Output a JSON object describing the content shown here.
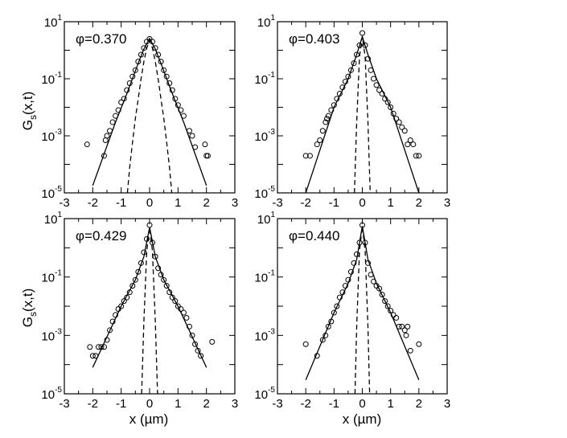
{
  "figure": {
    "ylabel_main": "G",
    "ylabel_sub": "s",
    "ylabel_args": "(x,t)",
    "xlabel": "x (µm)"
  },
  "chart_data": [
    {
      "type": "scatter",
      "panel_label": "φ=0.370",
      "xlim": [
        -3,
        3
      ],
      "ylim": [
        1e-05,
        10
      ],
      "yscale": "log",
      "xticks": [
        "-3",
        "-2",
        "-1",
        "0",
        "1",
        "2",
        "3"
      ],
      "yticks": [
        {
          "base": "10",
          "exp": "1"
        },
        {
          "base": "10",
          "exp": "-1"
        },
        {
          "base": "10",
          "exp": "-3"
        },
        {
          "base": "10",
          "exp": "-5"
        }
      ],
      "series": [
        {
          "kind": "markers",
          "marker": "open-circle",
          "x": [
            -2.2,
            -1.6,
            -1.55,
            -1.5,
            -1.4,
            -1.3,
            -1.2,
            -1.1,
            -1.0,
            -0.9,
            -0.8,
            -0.7,
            -0.6,
            -0.5,
            -0.4,
            -0.3,
            -0.2,
            -0.1,
            0.0,
            0.1,
            0.2,
            0.3,
            0.4,
            0.5,
            0.6,
            0.7,
            0.8,
            0.9,
            1.0,
            1.1,
            1.2,
            1.4,
            1.5,
            1.6,
            1.95,
            2.0,
            2.05
          ],
          "y": [
            0.0005,
            0.0002,
            0.0007,
            0.001,
            0.0015,
            0.003,
            0.005,
            0.008,
            0.015,
            0.02,
            0.04,
            0.07,
            0.12,
            0.2,
            0.4,
            0.7,
            1.2,
            2.0,
            2.5,
            2.0,
            1.2,
            0.7,
            0.4,
            0.2,
            0.12,
            0.07,
            0.04,
            0.02,
            0.012,
            0.008,
            0.005,
            0.0015,
            0.001,
            0.0004,
            0.0005,
            0.0002,
            0.0002
          ]
        },
        {
          "kind": "fit-solid",
          "x": [
            -2.0,
            -1.2,
            -0.8,
            -0.4,
            -0.2,
            0.0,
            0.2,
            0.4,
            0.8,
            1.2,
            2.0
          ],
          "y": [
            1.8e-05,
            0.003,
            0.03,
            0.35,
            1.1,
            2.6,
            1.1,
            0.35,
            0.03,
            0.003,
            1.8e-05
          ]
        },
        {
          "kind": "fit-dashed",
          "x": [
            -0.78,
            -0.7,
            -0.6,
            -0.5,
            -0.4,
            -0.3,
            -0.2,
            -0.1,
            0.0,
            0.1,
            0.2,
            0.3,
            0.4,
            0.5,
            0.6,
            0.7,
            0.78
          ],
          "y": [
            1e-05,
            8e-05,
            0.0006,
            0.004,
            0.02,
            0.1,
            0.4,
            1.2,
            2.2,
            1.2,
            0.4,
            0.1,
            0.02,
            0.004,
            0.0006,
            8e-05,
            1e-05
          ]
        }
      ]
    },
    {
      "type": "scatter",
      "panel_label": "φ=0.403",
      "xlim": [
        -3,
        3
      ],
      "ylim": [
        1e-05,
        10
      ],
      "yscale": "log",
      "xticks": [
        "-3",
        "-2",
        "-1",
        "0",
        "1",
        "2",
        "3"
      ],
      "yticks": [
        {
          "base": "10",
          "exp": "1"
        },
        {
          "base": "10",
          "exp": "-1"
        },
        {
          "base": "10",
          "exp": "-3"
        },
        {
          "base": "10",
          "exp": "-5"
        }
      ],
      "series": [
        {
          "kind": "markers",
          "marker": "open-circle",
          "x": [
            -2.0,
            -1.85,
            -1.6,
            -1.5,
            -1.4,
            -1.3,
            -1.25,
            -1.2,
            -1.1,
            -1.0,
            -0.9,
            -0.8,
            -0.7,
            -0.6,
            -0.5,
            -0.4,
            -0.3,
            -0.2,
            -0.1,
            0.0,
            0.1,
            0.2,
            0.3,
            0.4,
            0.5,
            0.6,
            0.7,
            0.8,
            0.9,
            1.0,
            1.1,
            1.2,
            1.3,
            1.4,
            1.5,
            1.6,
            1.7,
            1.8,
            1.9,
            2.0
          ],
          "y": [
            0.0002,
            0.0002,
            0.0005,
            0.0007,
            0.0015,
            0.003,
            0.004,
            0.005,
            0.008,
            0.012,
            0.02,
            0.03,
            0.05,
            0.08,
            0.12,
            0.2,
            0.35,
            0.7,
            1.5,
            4.0,
            1.5,
            0.5,
            0.2,
            0.1,
            0.06,
            0.04,
            0.03,
            0.02,
            0.015,
            0.01,
            0.006,
            0.004,
            0.003,
            0.002,
            0.0015,
            0.0005,
            0.0007,
            0.0005,
            0.0002,
            0.0002
          ]
        },
        {
          "kind": "fit-solid",
          "x": [
            -2.0,
            -1.0,
            -0.5,
            -0.2,
            0.0,
            0.2,
            0.5,
            1.0,
            2.0
          ],
          "y": [
            1e-05,
            0.01,
            0.1,
            0.7,
            3.0,
            0.7,
            0.1,
            0.01,
            1e-05
          ]
        },
        {
          "kind": "fit-dashed",
          "x": [
            -0.28,
            -0.2,
            -0.1,
            0.0,
            0.1,
            0.2,
            0.28
          ],
          "y": [
            1e-05,
            0.003,
            0.6,
            3.0,
            0.6,
            0.003,
            1e-05
          ]
        }
      ]
    },
    {
      "type": "scatter",
      "panel_label": "φ=0.429",
      "xlim": [
        -3,
        3
      ],
      "ylim": [
        1e-05,
        10
      ],
      "yscale": "log",
      "xticks": [
        "-3",
        "-2",
        "-1",
        "0",
        "1",
        "2",
        "3"
      ],
      "yticks": [
        {
          "base": "10",
          "exp": "1"
        },
        {
          "base": "10",
          "exp": "-1"
        },
        {
          "base": "10",
          "exp": "-3"
        },
        {
          "base": "10",
          "exp": "-5"
        }
      ],
      "series": [
        {
          "kind": "markers",
          "marker": "open-circle",
          "x": [
            -2.1,
            -2.0,
            -1.9,
            -1.8,
            -1.7,
            -1.6,
            -1.5,
            -1.4,
            -1.3,
            -1.2,
            -1.1,
            -1.0,
            -0.9,
            -0.8,
            -0.7,
            -0.6,
            -0.5,
            -0.4,
            -0.3,
            -0.2,
            -0.1,
            0.0,
            0.1,
            0.2,
            0.3,
            0.4,
            0.5,
            0.6,
            0.7,
            0.8,
            0.9,
            1.0,
            1.1,
            1.2,
            1.3,
            1.4,
            1.5,
            1.6,
            1.7,
            1.8,
            2.2
          ],
          "y": [
            0.0004,
            0.0002,
            0.0002,
            0.0004,
            0.0004,
            0.0004,
            0.0007,
            0.0015,
            0.003,
            0.005,
            0.008,
            0.01,
            0.015,
            0.02,
            0.03,
            0.05,
            0.08,
            0.15,
            0.3,
            0.7,
            2.0,
            6.0,
            1.5,
            0.5,
            0.2,
            0.12,
            0.08,
            0.05,
            0.03,
            0.02,
            0.015,
            0.01,
            0.008,
            0.006,
            0.004,
            0.002,
            0.001,
            0.0005,
            0.0003,
            0.0002,
            0.0006
          ]
        },
        {
          "kind": "fit-solid",
          "x": [
            -2.0,
            -1.0,
            -0.5,
            -0.2,
            0.0,
            0.2,
            0.5,
            1.0,
            2.0
          ],
          "y": [
            8e-05,
            0.01,
            0.08,
            0.5,
            5.0,
            0.5,
            0.08,
            0.01,
            8e-05
          ]
        },
        {
          "kind": "fit-dashed",
          "x": [
            -0.28,
            -0.2,
            -0.1,
            0.0,
            0.1,
            0.2,
            0.28
          ],
          "y": [
            1e-05,
            0.003,
            0.8,
            5.0,
            0.8,
            0.003,
            1e-05
          ]
        }
      ]
    },
    {
      "type": "scatter",
      "panel_label": "φ=0.440",
      "xlim": [
        -3,
        3
      ],
      "ylim": [
        1e-05,
        10
      ],
      "yscale": "log",
      "xticks": [
        "-3",
        "-2",
        "-1",
        "0",
        "1",
        "2",
        "3"
      ],
      "yticks": [
        {
          "base": "10",
          "exp": "1"
        },
        {
          "base": "10",
          "exp": "-1"
        },
        {
          "base": "10",
          "exp": "-3"
        },
        {
          "base": "10",
          "exp": "-5"
        }
      ],
      "series": [
        {
          "kind": "markers",
          "marker": "open-circle",
          "x": [
            -2.0,
            -1.6,
            -1.4,
            -1.3,
            -1.2,
            -1.1,
            -1.0,
            -0.9,
            -0.8,
            -0.7,
            -0.6,
            -0.5,
            -0.4,
            -0.3,
            -0.2,
            -0.1,
            0.0,
            0.1,
            0.2,
            0.3,
            0.4,
            0.5,
            0.6,
            0.7,
            0.8,
            0.9,
            1.0,
            1.1,
            1.2,
            1.3,
            1.4,
            1.5,
            1.55,
            1.6,
            1.7,
            2.0
          ],
          "y": [
            0.0005,
            0.0002,
            0.0007,
            0.001,
            0.002,
            0.003,
            0.006,
            0.01,
            0.02,
            0.03,
            0.05,
            0.08,
            0.15,
            0.3,
            0.6,
            1.5,
            6.0,
            1.5,
            0.3,
            0.12,
            0.07,
            0.05,
            0.04,
            0.025,
            0.015,
            0.01,
            0.007,
            0.005,
            0.004,
            0.002,
            0.002,
            0.0015,
            0.001,
            0.002,
            0.0003,
            0.0005
          ]
        },
        {
          "kind": "fit-solid",
          "x": [
            -2.0,
            -1.0,
            -0.5,
            -0.2,
            0.0,
            0.2,
            0.5,
            1.0,
            2.0
          ],
          "y": [
            3e-05,
            0.006,
            0.06,
            0.4,
            5.5,
            0.4,
            0.06,
            0.006,
            3e-05
          ]
        },
        {
          "kind": "fit-dashed",
          "x": [
            -0.26,
            -0.2,
            -0.1,
            0.0,
            0.1,
            0.2,
            0.26
          ],
          "y": [
            1e-05,
            0.002,
            0.8,
            5.5,
            0.8,
            0.002,
            1e-05
          ]
        }
      ]
    }
  ]
}
